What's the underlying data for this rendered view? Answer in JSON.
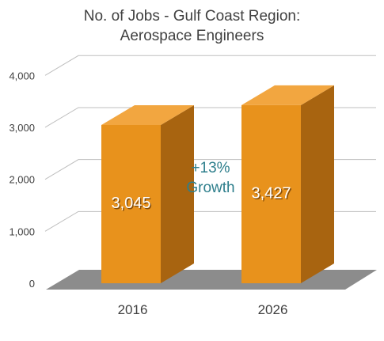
{
  "chart_data": {
    "type": "bar",
    "title_lines": [
      "No. of Jobs - Gulf Coast Region:",
      "Aerospace Engineers"
    ],
    "categories": [
      "2016",
      "2026"
    ],
    "values": [
      3045,
      3427
    ],
    "value_labels": [
      "3,045",
      "3,427"
    ],
    "ytick_values": [
      0,
      1000,
      2000,
      3000,
      4000
    ],
    "ytick_labels": [
      "0",
      "1,000",
      "2,000",
      "3,000",
      "4,000"
    ],
    "ylim": [
      0,
      4000
    ],
    "grid": true,
    "three_d": true,
    "annotation": {
      "line1": "+13%",
      "line2": "Growth"
    },
    "colors": {
      "bar_front": "#E8921C",
      "bar_side": "#A86410",
      "bar_top": "#F2A640",
      "floor": "#8C8C8C",
      "grid": "#BFBFBF",
      "text": "#404040",
      "annotation": "#2E7F8C",
      "value_label": "#ffffff"
    }
  }
}
